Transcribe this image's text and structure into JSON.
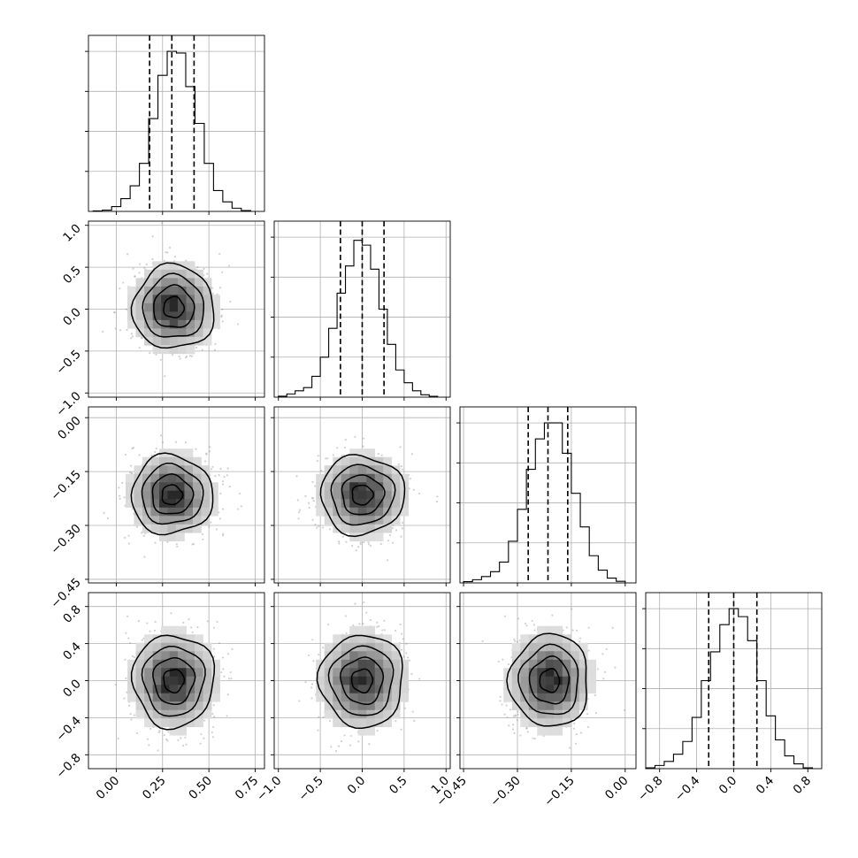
{
  "chart_data": {
    "type": "corner",
    "grid": true,
    "variables": [
      {
        "range": [
          -0.15,
          0.8
        ],
        "ticks": [
          0.0,
          0.25,
          0.5,
          0.75
        ],
        "tick_labels": [
          "0.00",
          "0.25",
          "0.50",
          "0.75"
        ],
        "quantiles": [
          0.18,
          0.3,
          0.42
        ],
        "hist_ymax": 1.1,
        "hist_ticks": [
          0.25,
          0.5,
          0.75,
          1.0
        ],
        "hist_bin_edges": [
          -0.125,
          -0.075,
          -0.025,
          0.025,
          0.075,
          0.125,
          0.175,
          0.225,
          0.275,
          0.325,
          0.375,
          0.425,
          0.475,
          0.525,
          0.575,
          0.625,
          0.675,
          0.725
        ],
        "hist_values": [
          0.003,
          0.008,
          0.03,
          0.08,
          0.16,
          0.3,
          0.58,
          0.85,
          1.0,
          0.99,
          0.78,
          0.55,
          0.3,
          0.13,
          0.06,
          0.02,
          0.005
        ]
      },
      {
        "range": [
          -1.05,
          1.05
        ],
        "ticks": [
          -1.0,
          -0.5,
          0.0,
          0.5,
          1.0
        ],
        "tick_labels": [
          "−1.0",
          "−0.5",
          "0.0",
          "0.5",
          "1.0"
        ],
        "quantiles": [
          -0.26,
          0.0,
          0.26
        ],
        "hist_ymax": 1.1,
        "hist_ticks": [
          0.25,
          0.5,
          0.75,
          1.0
        ],
        "hist_bin_edges": [
          -1.0,
          -0.9,
          -0.8,
          -0.7,
          -0.6,
          -0.5,
          -0.4,
          -0.3,
          -0.2,
          -0.1,
          0.0,
          0.1,
          0.2,
          0.3,
          0.4,
          0.5,
          0.6,
          0.7,
          0.8,
          0.9
        ],
        "hist_values": [
          0.006,
          0.02,
          0.04,
          0.06,
          0.13,
          0.25,
          0.43,
          0.65,
          0.82,
          0.98,
          0.95,
          0.8,
          0.55,
          0.33,
          0.17,
          0.09,
          0.04,
          0.015,
          0.005
        ]
      },
      {
        "range": [
          -0.46,
          0.03
        ],
        "ticks": [
          -0.45,
          -0.3,
          -0.15,
          0.0
        ],
        "tick_labels": [
          "−0.45",
          "−0.30",
          "−0.15",
          "0.00"
        ],
        "quantiles": [
          -0.27,
          -0.215,
          -0.16
        ],
        "hist_ymax": 1.1,
        "hist_ticks": [
          0.25,
          0.5,
          0.75,
          1.0
        ],
        "hist_bin_edges": [
          -0.45,
          -0.425,
          -0.4,
          -0.375,
          -0.35,
          -0.325,
          -0.3,
          -0.275,
          -0.25,
          -0.225,
          -0.2,
          -0.175,
          -0.15,
          -0.125,
          -0.1,
          -0.075,
          -0.05,
          -0.025,
          0.0
        ],
        "hist_values": [
          0.008,
          0.02,
          0.04,
          0.07,
          0.13,
          0.26,
          0.46,
          0.71,
          0.9,
          1.0,
          1.0,
          0.81,
          0.56,
          0.35,
          0.17,
          0.08,
          0.03,
          0.01
        ]
      },
      {
        "range": [
          -0.95,
          0.95
        ],
        "ticks": [
          -0.8,
          -0.4,
          0.0,
          0.4,
          0.8
        ],
        "tick_labels": [
          "−0.8",
          "−0.4",
          "0.0",
          "0.4",
          "0.8"
        ],
        "quantiles": [
          -0.27,
          0.0,
          0.25
        ],
        "hist_ymax": 1.1,
        "hist_ticks": [
          0.25,
          0.5,
          0.75,
          1.0
        ],
        "hist_bin_edges": [
          -0.95,
          -0.85,
          -0.75,
          -0.65,
          -0.55,
          -0.45,
          -0.35,
          -0.25,
          -0.15,
          -0.05,
          0.05,
          0.15,
          0.25,
          0.35,
          0.45,
          0.55,
          0.65,
          0.75,
          0.85
        ],
        "hist_values": [
          0.005,
          0.02,
          0.045,
          0.09,
          0.17,
          0.32,
          0.55,
          0.73,
          0.9,
          1.0,
          0.95,
          0.8,
          0.55,
          0.33,
          0.18,
          0.08,
          0.03,
          0.005
        ]
      }
    ],
    "pairs": [
      {
        "x": 0,
        "y": 1,
        "mean": [
          0.31,
          0.02
        ],
        "sd": [
          0.11,
          0.25
        ]
      },
      {
        "x": 0,
        "y": 2,
        "mean": [
          0.3,
          -0.215
        ],
        "sd": [
          0.11,
          0.055
        ]
      },
      {
        "x": 1,
        "y": 2,
        "mean": [
          0.0,
          -0.215
        ],
        "sd": [
          0.25,
          0.055
        ]
      },
      {
        "x": 0,
        "y": 3,
        "mean": [
          0.31,
          0.0
        ],
        "sd": [
          0.11,
          0.25
        ]
      },
      {
        "x": 1,
        "y": 3,
        "mean": [
          0.0,
          0.0
        ],
        "sd": [
          0.25,
          0.25
        ]
      },
      {
        "x": 2,
        "y": 3,
        "mean": [
          -0.21,
          0.0
        ],
        "sd": [
          0.055,
          0.25
        ]
      }
    ],
    "contour_levels_sigma": [
      0.5,
      1.0,
      1.5,
      2.0
    ]
  }
}
